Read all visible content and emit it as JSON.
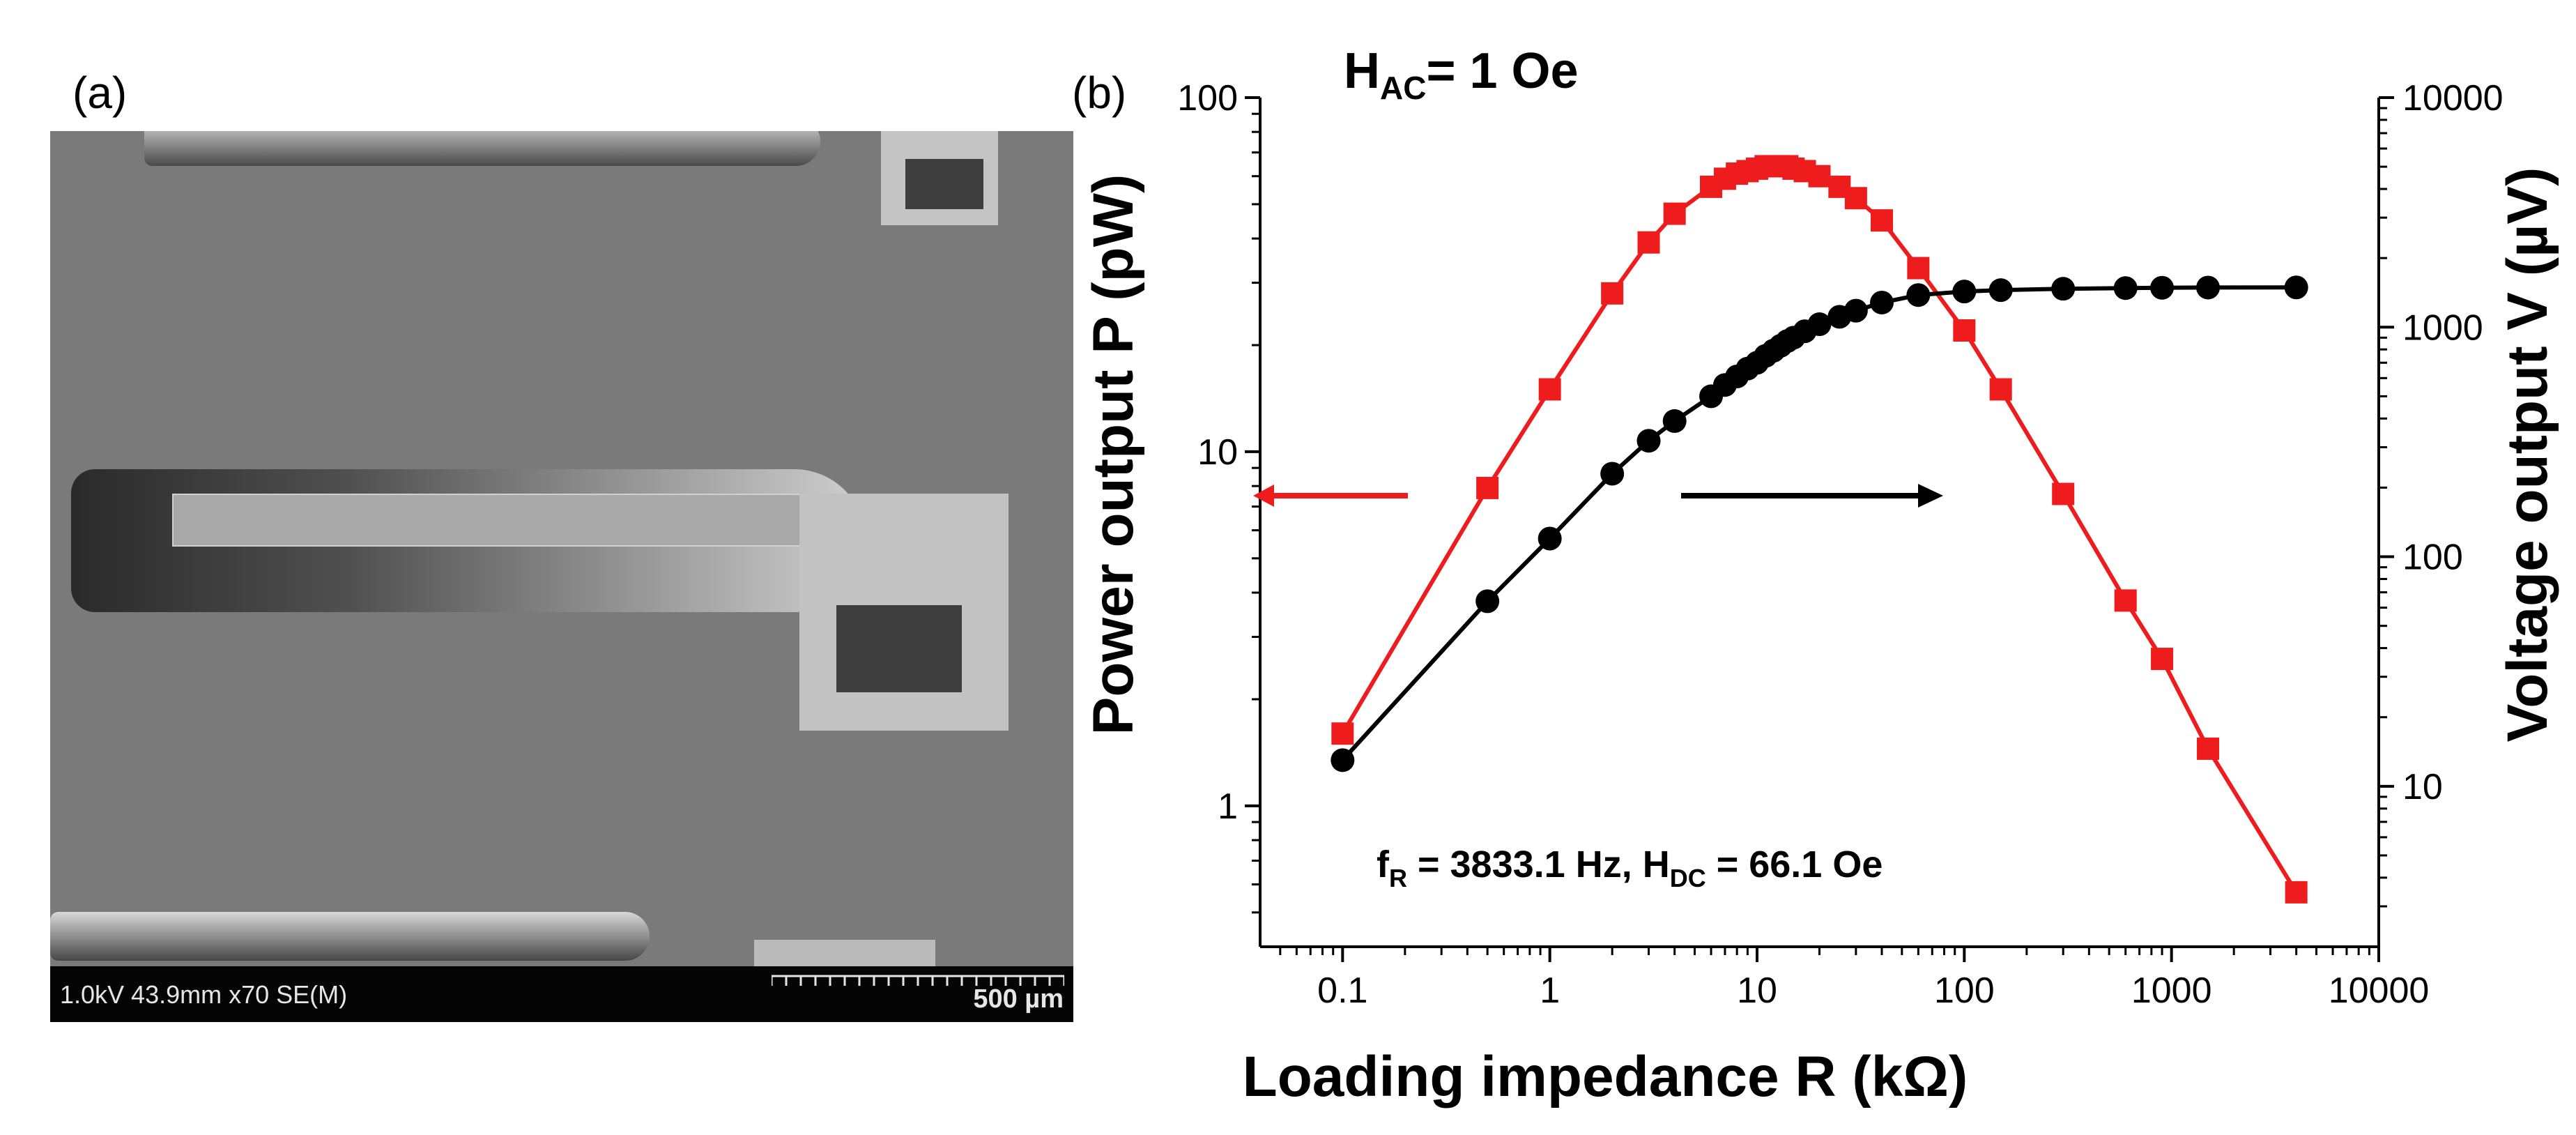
{
  "panels": {
    "a_label": "(a)",
    "b_label": "(b)"
  },
  "sem_image": {
    "info_text": "1.0kV 43.9mm x70 SE(M)",
    "scale_text": "500 µm"
  },
  "colors": {
    "power_series": "#ee1c1c",
    "voltage_series": "#000000"
  },
  "chart_data": {
    "type": "line",
    "title": "H_AC= 1 Oe",
    "title_main": "H",
    "title_sub": "AC",
    "title_rest": "= 1 Oe",
    "xlabel": "Loading impedance R (kΩ)",
    "ylabel_left": "Power output P (pW)",
    "ylabel_right": "Voltage output V (µV)",
    "x_scale": "log",
    "y_left_scale": "log",
    "y_right_scale": "log",
    "xlim": [
      0.04,
      10000
    ],
    "ylim_left": [
      0.4,
      100
    ],
    "ylim_right": [
      2,
      10000
    ],
    "x_ticks": [
      0.1,
      1,
      10,
      100,
      1000,
      10000
    ],
    "x_tick_labels": [
      "0.1",
      "1",
      "10",
      "100",
      "1000",
      "10000"
    ],
    "y_left_ticks": [
      1,
      10,
      100
    ],
    "y_left_tick_labels": [
      "1",
      "10",
      "100"
    ],
    "y_right_ticks": [
      10,
      100,
      1000,
      10000
    ],
    "y_right_tick_labels": [
      "10",
      "100",
      "1000",
      "10000"
    ],
    "annotation": {
      "f_main": "f",
      "f_sub": "R",
      "f_rest": " = 3833.1 Hz,   H",
      "h_sub": "DC",
      "h_rest": " = 66.1 Oe"
    },
    "arrows": [
      {
        "direction": "left",
        "axis": "left",
        "color": "#ee1c1c"
      },
      {
        "direction": "right",
        "axis": "right",
        "color": "#000000"
      }
    ],
    "series": [
      {
        "axis": "left",
        "marker": "square",
        "color": "#ee1c1c",
        "x": [
          0.1,
          0.5,
          1,
          2,
          3,
          4,
          6,
          7,
          8,
          9,
          10,
          11,
          12,
          13,
          14,
          15,
          17,
          20,
          25,
          30,
          40,
          60,
          100,
          150,
          300,
          600,
          900,
          1500,
          4000
        ],
        "y": [
          1.6,
          7.9,
          15,
          28,
          39,
          47,
          56,
          59,
          61,
          62,
          63,
          64,
          64,
          64,
          64,
          63,
          62,
          60,
          56,
          52,
          45,
          33,
          22,
          15,
          7.6,
          3.8,
          2.6,
          1.45,
          0.57
        ]
      },
      {
        "axis": "right",
        "marker": "circle",
        "color": "#000000",
        "x": [
          0.1,
          0.5,
          1,
          2,
          3,
          4,
          6,
          7,
          8,
          9,
          10,
          11,
          12,
          13,
          14,
          15,
          17,
          20,
          25,
          30,
          40,
          60,
          100,
          150,
          300,
          600,
          900,
          1500,
          4000
        ],
        "y": [
          13,
          64,
          120,
          230,
          320,
          390,
          500,
          560,
          610,
          660,
          700,
          750,
          790,
          830,
          870,
          900,
          960,
          1030,
          1110,
          1180,
          1280,
          1380,
          1430,
          1450,
          1470,
          1480,
          1485,
          1488,
          1490
        ]
      }
    ]
  }
}
